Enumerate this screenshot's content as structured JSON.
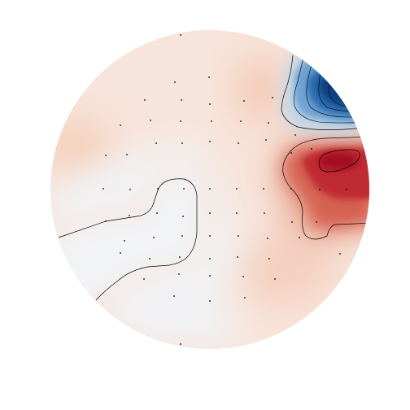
{
  "figure": {
    "kind": "scalp topographic map",
    "colormap": "RdBu_r",
    "colors": {
      "background": "#ffffff",
      "neutral": "#f2f3f5",
      "light_red": "#f6d7c8",
      "medium_red": "#e07d6a",
      "strong_red": "#b5182b",
      "light_blue": "#c6dbef",
      "medium_blue": "#4a8ac4",
      "strong_blue": "#0b3d7a",
      "contour": "#000000",
      "sensor": "#000000"
    },
    "contour_lines": true,
    "sensor_markers": true
  }
}
